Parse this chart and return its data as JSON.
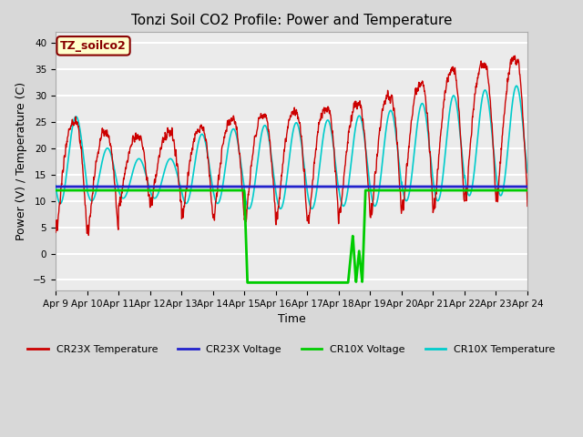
{
  "title": "Tonzi Soil CO2 Profile: Power and Temperature",
  "xlabel": "Time",
  "ylabel": "Power (V) / Temperature (C)",
  "ylim": [
    -7,
    42
  ],
  "xlim": [
    0,
    15
  ],
  "xtick_labels": [
    "Apr 9",
    "Apr 10",
    "Apr 11",
    "Apr 12",
    "Apr 13",
    "Apr 14",
    "Apr 15",
    "Apr 16",
    "Apr 17",
    "Apr 18",
    "Apr 19",
    "Apr 20",
    "Apr 21",
    "Apr 22",
    "Apr 23",
    "Apr 24"
  ],
  "legend_labels": [
    "CR23X Temperature",
    "CR23X Voltage",
    "CR10X Voltage",
    "CR10X Temperature"
  ],
  "legend_colors": [
    "#cc0000",
    "#0000cc",
    "#00cc00",
    "#00cccc"
  ],
  "cr23x_voltage_value": 12.7,
  "cr10x_voltage_flat": 12.0,
  "annotation_text": "TZ_soilco2",
  "annotation_color": "#880000",
  "annotation_bg": "#ffffcc",
  "fig_bg_color": "#d8d8d8",
  "plot_bg_color": "#ebebeb",
  "grid_color": "#ffffff",
  "title_fontsize": 11,
  "axis_fontsize": 9,
  "tick_fontsize": 7.5
}
